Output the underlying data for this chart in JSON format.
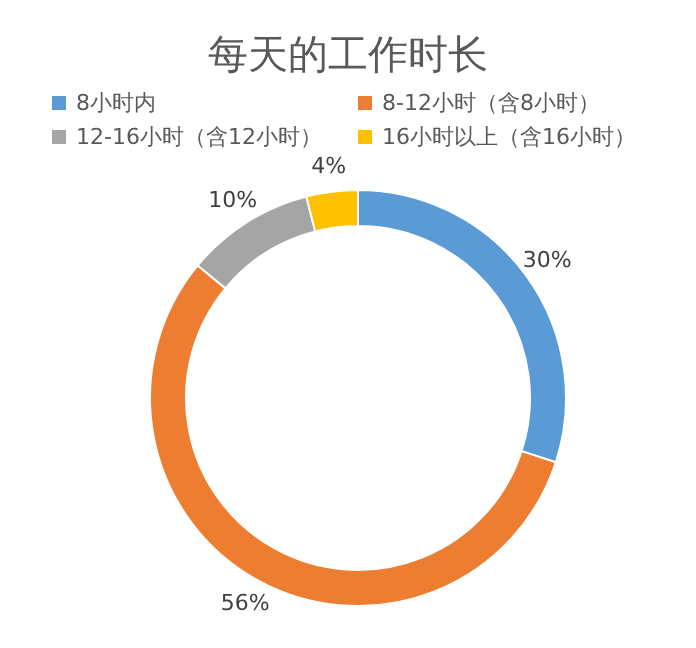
{
  "chart_data": {
    "type": "donut",
    "title": "每天的工作时长",
    "categories": [
      "8小时内",
      "8-12小时（含8小时）",
      "12-16小时（含12小时）",
      "16小时以上（含16小时）"
    ],
    "values": [
      30,
      56,
      10,
      4
    ],
    "colors": [
      "#5b9bd5",
      "#ed7d31",
      "#a5a5a5",
      "#ffc000"
    ],
    "value_labels": [
      "30%",
      "56%",
      "10%",
      "4%"
    ],
    "legend": "top"
  }
}
